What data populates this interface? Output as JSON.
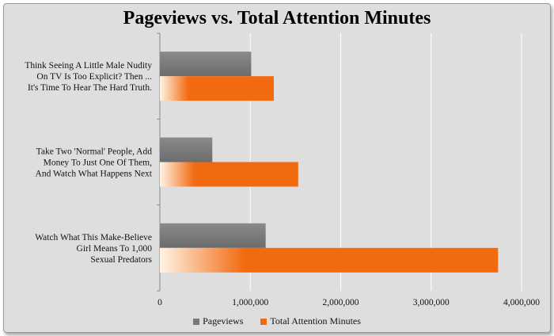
{
  "chart_data": {
    "type": "bar",
    "orientation": "horizontal",
    "title": "Pageviews vs. Total Attention Minutes",
    "categories": [
      [
        "Think Seeing A Little Male Nudity",
        "On TV Is Too Explicit? Then ...",
        "It's Time To Hear The Hard Truth."
      ],
      [
        "Take Two 'Normal' People, Add",
        "Money To Just One Of Them,",
        "And Watch What Happens Next"
      ],
      [
        "Watch What This Make-Believe",
        "Girl Means To 1,000",
        "Sexual Predators"
      ]
    ],
    "series": [
      {
        "name": "Pageviews",
        "color": "#7a7a7a",
        "values": [
          1010000,
          580000,
          1170000
        ]
      },
      {
        "name": "Total Attention Minutes",
        "color": "#f26a10",
        "values": [
          1260000,
          1530000,
          3740000
        ]
      }
    ],
    "xlim": [
      0,
      4000000
    ],
    "ticks": [
      0,
      1000000,
      2000000,
      3000000,
      4000000
    ],
    "tick_labels": [
      "0",
      "1,000,000",
      "2,000,000",
      "3,000,000",
      "4,000,000"
    ],
    "grid": true,
    "legend_position": "bottom"
  }
}
